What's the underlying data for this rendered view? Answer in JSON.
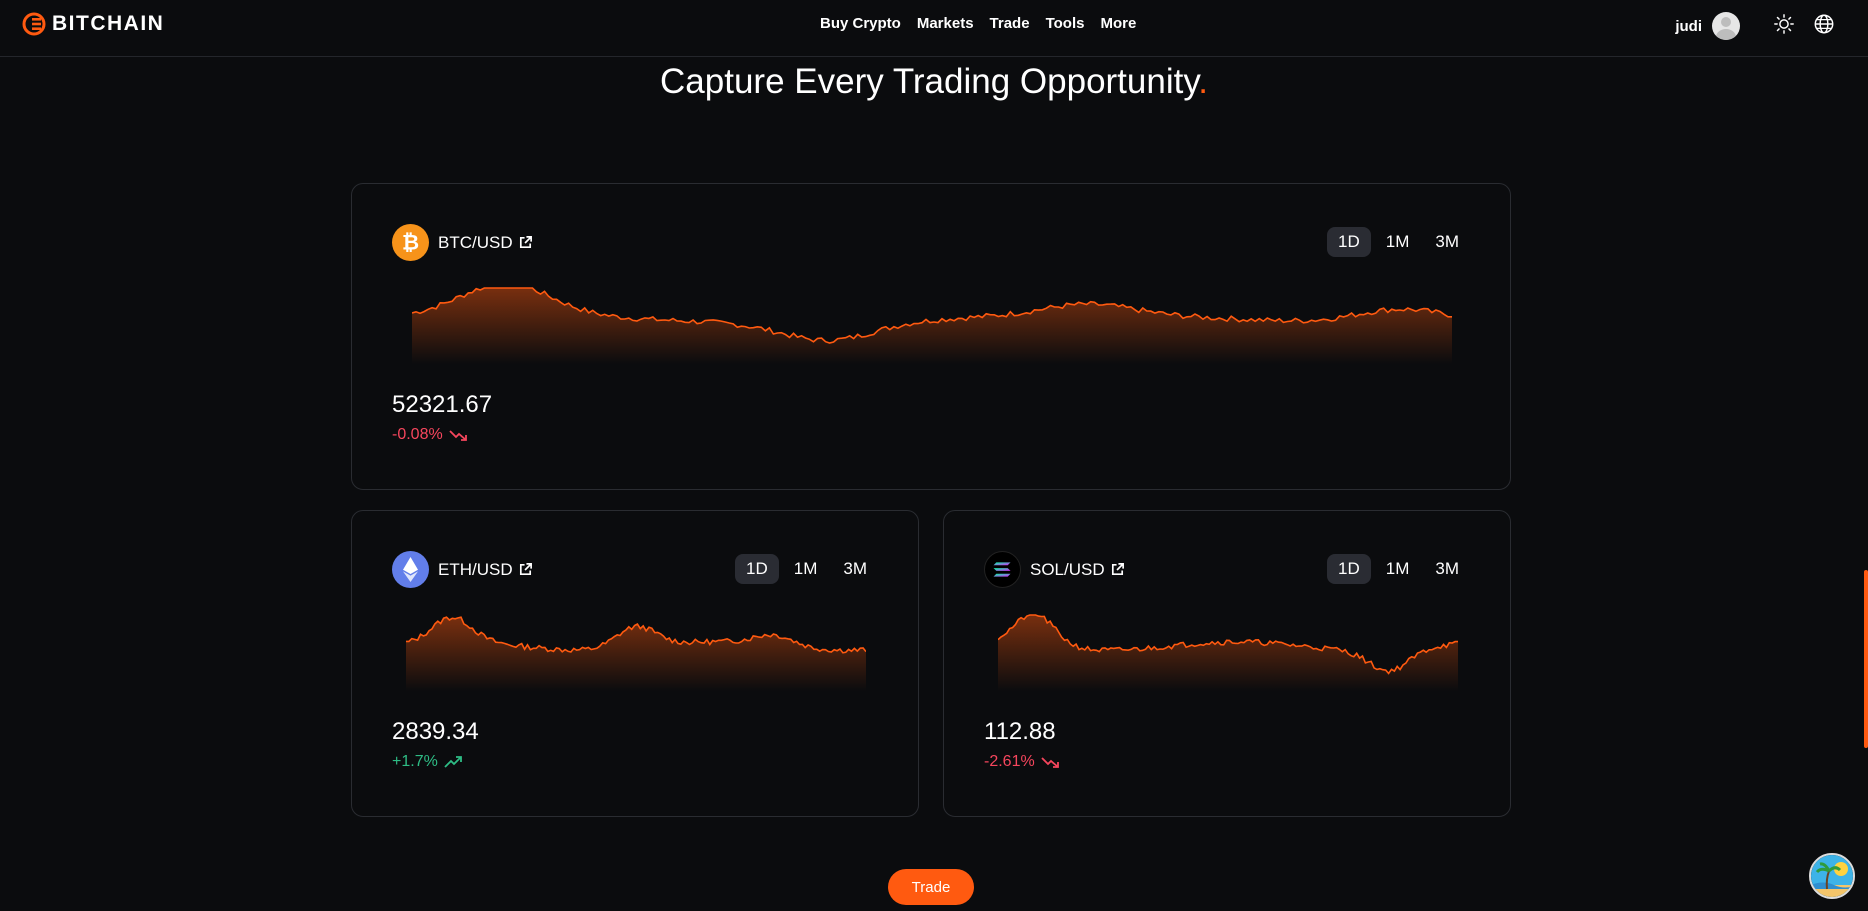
{
  "brand": {
    "name": "BITCHAIN",
    "logo_icon": "bitchain-logo-icon"
  },
  "nav": {
    "items": [
      "Buy Crypto",
      "Markets",
      "Trade",
      "Tools",
      "More"
    ]
  },
  "user": {
    "name": "judi",
    "theme_icon": "sun-icon",
    "language_icon": "globe-icon"
  },
  "headline": {
    "text": "Capture Every Trading Opportunity",
    "accent": "."
  },
  "colors": {
    "accent": "#ff5a10",
    "negative": "#f6465d",
    "positive": "#2ebd85"
  },
  "markets": [
    {
      "pair": "BTC/USD",
      "coin_icon": "bitcoin-icon",
      "timeframes": [
        "1D",
        "1M",
        "3M"
      ],
      "active_timeframe": "1D",
      "price": "52321.67",
      "change": "-0.08%",
      "trend": "down"
    },
    {
      "pair": "ETH/USD",
      "coin_icon": "ethereum-icon",
      "timeframes": [
        "1D",
        "1M",
        "3M"
      ],
      "active_timeframe": "1D",
      "price": "2839.34",
      "change": "+1.7%",
      "trend": "up"
    },
    {
      "pair": "SOL/USD",
      "coin_icon": "solana-icon",
      "timeframes": [
        "1D",
        "1M",
        "3M"
      ],
      "active_timeframe": "1D",
      "price": "112.88",
      "change": "-2.61%",
      "trend": "down"
    }
  ],
  "cta": {
    "label": "Trade"
  }
}
